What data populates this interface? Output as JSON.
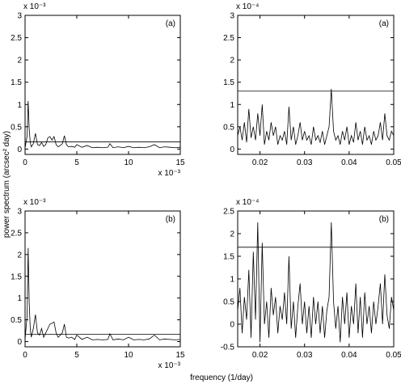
{
  "figure": {
    "ylabel": "power spectrum (arcsec² day)",
    "xlabel": "frequency (1/day)"
  },
  "chart_data": [
    {
      "type": "line",
      "panel_label": "(a)",
      "xlim": [
        0,
        0.015
      ],
      "ylim": [
        -0.00012,
        0.003
      ],
      "x_ticks": [
        0,
        0.005,
        0.01,
        0.015
      ],
      "x_tick_labels": [
        "0",
        "5",
        "10",
        "15"
      ],
      "x_exponent_label": "x 10⁻³",
      "y_ticks": [
        0,
        0.0005,
        0.001,
        0.0015,
        0.002,
        0.0025,
        0.003
      ],
      "y_tick_labels": [
        "0",
        "0.5",
        "1",
        "1.5",
        "2",
        "2.5",
        "3"
      ],
      "y_exponent_label": "x 10⁻³",
      "threshold": 0.00016,
      "series": [
        {
          "x": [
            0,
            0.0002,
            0.0003,
            0.0004,
            0.0005,
            0.0006,
            0.0008,
            0.001,
            0.0012,
            0.0014,
            0.0016,
            0.0018,
            0.002,
            0.0022,
            0.0024,
            0.0026,
            0.0028,
            0.003,
            0.0032,
            0.0034,
            0.0036,
            0.0038,
            0.004,
            0.0042,
            0.0045,
            0.0048,
            0.005,
            0.0055,
            0.006,
            0.0065,
            0.007,
            0.0075,
            0.008,
            0.0082,
            0.0085,
            0.009,
            0.0095,
            0.01,
            0.0105,
            0.011,
            0.0115,
            0.012,
            0.0125,
            0.013,
            0.0135,
            0.014,
            0.0145,
            0.015
          ],
          "y": [
            2e-05,
            0.0003,
            0.00108,
            0.00045,
            0.00015,
            5e-05,
            0.00012,
            0.00035,
            0.0001,
            8e-05,
            0.00015,
            6e-05,
            0.0001,
            0.00025,
            0.00028,
            0.0002,
            0.00028,
            0.0001,
            5e-05,
            8e-05,
            0.00012,
            0.0003,
            0.0001,
            5e-05,
            6e-05,
            4e-05,
            0.0001,
            4e-05,
            8e-05,
            3e-05,
            4e-05,
            3e-05,
            4e-05,
            0.00012,
            3e-05,
            5e-05,
            3e-05,
            6e-05,
            3e-05,
            4e-05,
            3e-05,
            5e-05,
            0.0001,
            3e-05,
            5e-05,
            4e-05,
            3e-05,
            4e-05
          ]
        }
      ]
    },
    {
      "type": "line",
      "panel_label": "(a)",
      "xlim": [
        0.015,
        0.05
      ],
      "ylim": [
        -1.2e-05,
        0.0003
      ],
      "x_ticks": [
        0.02,
        0.03,
        0.04,
        0.05
      ],
      "x_tick_labels": [
        "0.02",
        "0.03",
        "0.04",
        "0.05"
      ],
      "y_ticks": [
        0,
        5e-05,
        0.0001,
        0.00015,
        0.0002,
        0.00025,
        0.0003
      ],
      "y_tick_labels": [
        "0",
        "0.5",
        "1",
        "1.5",
        "2",
        "2.5",
        "3"
      ],
      "y_exponent_label": "x 10⁻⁴",
      "threshold": 0.00013,
      "series": [
        {
          "x": [
            0.015,
            0.0155,
            0.016,
            0.0165,
            0.017,
            0.0175,
            0.018,
            0.0185,
            0.019,
            0.0195,
            0.02,
            0.0205,
            0.021,
            0.0215,
            0.022,
            0.0225,
            0.023,
            0.0235,
            0.024,
            0.0245,
            0.025,
            0.0255,
            0.026,
            0.0265,
            0.027,
            0.0275,
            0.028,
            0.0285,
            0.029,
            0.0295,
            0.03,
            0.0305,
            0.031,
            0.0315,
            0.032,
            0.0325,
            0.033,
            0.0335,
            0.034,
            0.0345,
            0.035,
            0.0355,
            0.036,
            0.0365,
            0.037,
            0.0375,
            0.038,
            0.0385,
            0.039,
            0.0395,
            0.04,
            0.0405,
            0.041,
            0.0415,
            0.042,
            0.0425,
            0.043,
            0.0435,
            0.044,
            0.0445,
            0.045,
            0.0455,
            0.046,
            0.0465,
            0.047,
            0.0475,
            0.048,
            0.0485,
            0.049,
            0.0495,
            0.05
          ],
          "y": [
            3e-05,
            5e-05,
            2e-05,
            6e-05,
            1.5e-05,
            9e-05,
            2.5e-05,
            5e-05,
            2e-05,
            8e-05,
            3e-05,
            0.0001,
            1e-05,
            4e-05,
            2e-05,
            6e-05,
            3e-05,
            5e-05,
            1e-05,
            3e-05,
            2e-05,
            4e-05,
            1e-05,
            9.5e-05,
            2e-05,
            5e-05,
            1e-05,
            3e-05,
            6e-05,
            2e-05,
            4e-05,
            2e-05,
            3e-05,
            1e-05,
            5e-05,
            2e-05,
            3e-05,
            1.5e-05,
            4e-05,
            1e-05,
            3e-05,
            5e-05,
            0.000135,
            4e-05,
            2e-05,
            3e-05,
            1e-05,
            4e-05,
            2e-05,
            5e-05,
            1e-05,
            3e-05,
            1.5e-05,
            6e-05,
            2e-05,
            4e-05,
            1e-05,
            5e-05,
            2e-05,
            3e-05,
            1e-05,
            4e-05,
            2e-05,
            3e-05,
            6e-05,
            2e-05,
            8e-05,
            3e-05,
            2e-05,
            4e-05,
            3e-05
          ]
        }
      ]
    },
    {
      "type": "line",
      "panel_label": "(b)",
      "xlim": [
        0,
        0.015
      ],
      "ylim": [
        -0.00012,
        0.003
      ],
      "x_ticks": [
        0,
        0.005,
        0.01,
        0.015
      ],
      "x_tick_labels": [
        "0",
        "5",
        "10",
        "15"
      ],
      "x_exponent_label": "x 10⁻³",
      "y_ticks": [
        0,
        0.0005,
        0.001,
        0.0015,
        0.002,
        0.0025,
        0.003
      ],
      "y_tick_labels": [
        "0",
        "0.5",
        "1",
        "1.5",
        "2",
        "2.5",
        "3"
      ],
      "y_exponent_label": "x 10⁻³",
      "threshold": 0.00017,
      "series": [
        {
          "x": [
            0,
            0.0002,
            0.0003,
            0.0004,
            0.0005,
            0.0006,
            0.0008,
            0.001,
            0.0012,
            0.0014,
            0.0016,
            0.0018,
            0.002,
            0.0022,
            0.0024,
            0.0026,
            0.0028,
            0.003,
            0.0032,
            0.0034,
            0.0036,
            0.0038,
            0.004,
            0.0042,
            0.0045,
            0.0048,
            0.005,
            0.0055,
            0.006,
            0.0065,
            0.007,
            0.0075,
            0.008,
            0.0082,
            0.0085,
            0.009,
            0.0095,
            0.01,
            0.0105,
            0.011,
            0.0115,
            0.012,
            0.0125,
            0.013,
            0.0135,
            0.014,
            0.0145,
            0.015
          ],
          "y": [
            5e-05,
            0.0006,
            0.00215,
            0.0009,
            0.0003,
            0.0001,
            0.0003,
            0.00062,
            0.0002,
            0.00015,
            0.0003,
            0.0001,
            0.0002,
            0.0003,
            0.0004,
            0.00042,
            0.00045,
            0.0002,
            0.0001,
            0.00015,
            0.0002,
            0.0004,
            0.0001,
            8e-05,
            0.0001,
            5e-05,
            0.00015,
            5e-05,
            0.0001,
            4e-05,
            5e-05,
            4e-05,
            5e-05,
            0.00018,
            4e-05,
            6e-05,
            4e-05,
            0.0001,
            4e-05,
            5e-05,
            4e-05,
            6e-05,
            0.00015,
            4e-05,
            6e-05,
            5e-05,
            4e-05,
            5e-05
          ]
        }
      ]
    },
    {
      "type": "line",
      "panel_label": "(b)",
      "xlim": [
        0.015,
        0.05
      ],
      "ylim": [
        -5e-05,
        0.00025
      ],
      "x_ticks": [
        0.02,
        0.03,
        0.04,
        0.05
      ],
      "x_tick_labels": [
        "0.02",
        "0.03",
        "0.04",
        "0.05"
      ],
      "y_ticks": [
        -5e-05,
        0,
        5e-05,
        0.0001,
        0.00015,
        0.0002,
        0.00025
      ],
      "y_tick_labels": [
        "-0.5",
        "0",
        "0.5",
        "1",
        "1.5",
        "2",
        "2.5"
      ],
      "y_exponent_label": "x 10⁻⁴",
      "threshold": 0.00017,
      "series": [
        {
          "x": [
            0.015,
            0.0155,
            0.016,
            0.0165,
            0.017,
            0.0175,
            0.018,
            0.0185,
            0.019,
            0.0195,
            0.02,
            0.0205,
            0.021,
            0.0215,
            0.022,
            0.0225,
            0.023,
            0.0235,
            0.024,
            0.0245,
            0.025,
            0.0255,
            0.026,
            0.0265,
            0.027,
            0.0275,
            0.028,
            0.0285,
            0.029,
            0.0295,
            0.03,
            0.0305,
            0.031,
            0.0315,
            0.032,
            0.0325,
            0.033,
            0.0335,
            0.034,
            0.0345,
            0.035,
            0.0355,
            0.036,
            0.0365,
            0.037,
            0.0375,
            0.038,
            0.0385,
            0.039,
            0.0395,
            0.04,
            0.0405,
            0.041,
            0.0415,
            0.042,
            0.0425,
            0.043,
            0.0435,
            0.044,
            0.0445,
            0.045,
            0.0455,
            0.046,
            0.0465,
            0.047,
            0.0475,
            0.048,
            0.0485,
            0.049,
            0.0495,
            0.05
          ],
          "y": [
            3e-05,
            8e-05,
            -2e-05,
            6e-05,
            1e-05,
            0.00012,
            -3e-05,
            0.00016,
            1e-05,
            0.000225,
            -4e-05,
            0.00018,
            0.0,
            5e-05,
            -3e-05,
            8e-05,
            2e-05,
            6e-05,
            -2e-05,
            4e-05,
            1e-05,
            7e-05,
            0.0,
            0.00015,
            -1e-05,
            5e-05,
            -3e-05,
            4e-05,
            9e-05,
            0.0,
            5e-05,
            -2e-05,
            4e-05,
            -3e-05,
            6e-05,
            0.0,
            5e-05,
            -2e-05,
            4e-05,
            -3e-05,
            3e-05,
            6e-05,
            0.000225,
            5e-05,
            -1e-05,
            4e-05,
            -4e-05,
            6e-05,
            0.0,
            7e-05,
            -3e-05,
            4e-05,
            0.0,
            9e-05,
            -2e-05,
            6e-05,
            -3e-05,
            7e-05,
            0.0,
            4e-05,
            -2e-05,
            5e-05,
            0.0,
            4e-05,
            9e-05,
            0.0,
            0.00011,
            2e-05,
            -1e-05,
            6e-05,
            3e-05
          ]
        }
      ]
    }
  ]
}
